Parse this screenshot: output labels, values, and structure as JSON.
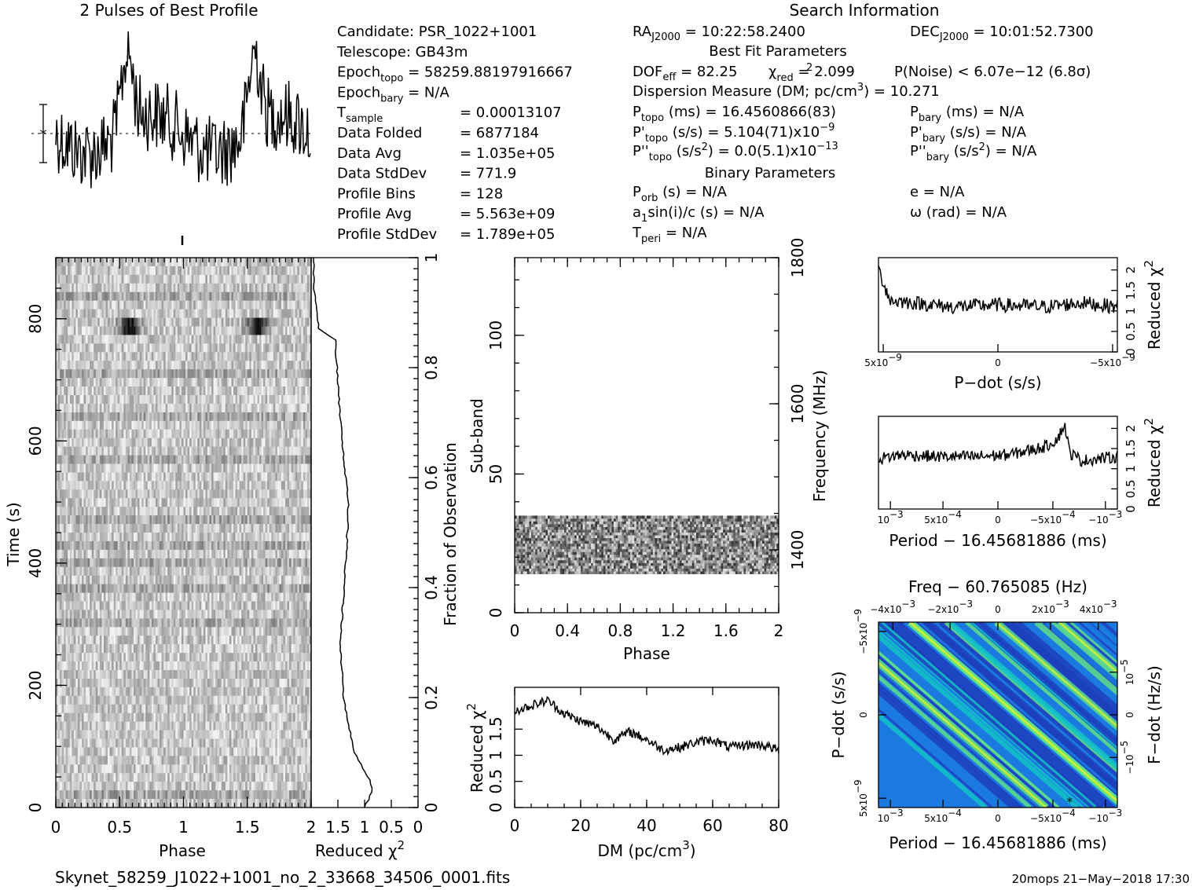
{
  "header": {
    "profile_title": "2 Pulses of Best Profile",
    "search_title": "Search Information",
    "best_fit_title": "Best Fit Parameters",
    "binary_title": "Binary Parameters"
  },
  "info_col1": [
    {
      "label": "Candidate:  PSR_1022+1001",
      "value": ""
    },
    {
      "label": "Telescope:  GB43m",
      "value": ""
    },
    {
      "label": "Epoch",
      "sub": "topo",
      "value": "= 58259.88197916667"
    },
    {
      "label": "Epoch",
      "sub": "bary",
      "value": "= N/A"
    },
    {
      "label": "T",
      "sub": "sample",
      "value": "=  0.00013107"
    },
    {
      "label": "Data Folded",
      "sub": "",
      "value": "=  6877184"
    },
    {
      "label": "Data Avg",
      "sub": "",
      "value": "=  1.035e+05"
    },
    {
      "label": "Data StdDev",
      "sub": "",
      "value": "=  771.9"
    },
    {
      "label": "Profile Bins",
      "sub": "",
      "value": "=  128"
    },
    {
      "label": "Profile Avg",
      "sub": "",
      "value": "=  5.563e+09"
    },
    {
      "label": "Profile StdDev",
      "sub": "",
      "value": "=  1.789e+05"
    }
  ],
  "info_col2": {
    "ra": "RA",
    "ra_sub": "J2000",
    "ra_value": " = 10:22:58.2400",
    "dec": "DEC",
    "dec_sub": "J2000",
    "dec_value": " = 10:01:52.7300",
    "dof": "DOF",
    "dof_sub": "eff",
    "dof_value": " = 82.25",
    "chi": "χ",
    "chi_sub": "red",
    "chi_value": " = 2.099",
    "pnoise": "P(Noise) < 6.07e−12   (6.8σ)",
    "dm": "Dispersion Measure (DM; pc/cm",
    "dm_value": ") = 10.271",
    "ptopo": "P",
    "ptopo_sub": "topo",
    "ptopo_value": " (ms) =  16.4560866(83)",
    "pbary": "P",
    "pbary_sub": "bary",
    "pbary_value": " (ms) = N/A",
    "pdtopo": "P'",
    "pdtopo_sub": "topo",
    "pdtopo_value": " (s/s) =  5.104(71)x10",
    "pdtopo_exp": "−9",
    "pdbary": "P'",
    "pdbary_sub": "bary",
    "pdbary_value": " (s/s) = N/A",
    "pddtopo": "P''",
    "pddtopo_sub": "topo",
    "pddtopo_value": " (s/s",
    "pddtopo_value2": ") = 0.0(5.1)x10",
    "pddtopo_exp": "−13",
    "pddbary": "P''",
    "pddbary_sub": "bary",
    "pddbary_value": " (s/s",
    "pddbary_value2": ") = N/A",
    "porb": "P",
    "porb_sub": "orb",
    "porb_value": " (s) = N/A",
    "ecc": "e = N/A",
    "a1": "a",
    "a1_sub": "1",
    "a1_value": "sin(i)/c (s) = N/A",
    "omega": "ω (rad) = N/A",
    "tperi": "T",
    "tperi_sub": "peri",
    "tperi_value": " = N/A"
  },
  "footer": {
    "filename": "Skynet_58259_J1022+1001_no_2_33668_34506_0001.fits",
    "stamp": "20mops 21−May−2018 17:30"
  },
  "chart_data": [
    {
      "type": "line",
      "name": "pulse-profile",
      "title": "2 Pulses of Best Profile",
      "x_range": [
        0,
        2
      ],
      "peaks_at_phase": [
        0.56,
        1.56
      ]
    },
    {
      "type": "heatmap",
      "name": "time-vs-phase",
      "xlabel": "Phase",
      "ylabel": "Time (s)",
      "xlim": [
        0,
        2
      ],
      "ylim": [
        0,
        900
      ],
      "x_ticks": [
        "0",
        "0.5",
        "1",
        "1.5"
      ],
      "y_ticks": [
        "0",
        "200",
        "400",
        "600",
        "800"
      ],
      "right_label": "Fraction of Observation",
      "right_ticks": [
        "0",
        "0.2",
        "0.4",
        "0.6",
        "0.8",
        "1"
      ],
      "bright_row_time": 782
    },
    {
      "type": "line",
      "name": "time-reduced-chi2",
      "xlabel": "Reduced χ",
      "x_ticks": [
        "2",
        "1.5",
        "1",
        "0.5",
        "0"
      ],
      "x_reversed": true,
      "fraction": [
        0,
        0.03,
        0.05,
        0.1,
        0.2,
        0.3,
        0.45,
        0.55,
        0.7,
        0.85,
        0.87,
        0.9,
        0.95,
        1.0
      ],
      "chi2": [
        1.0,
        0.85,
        0.9,
        1.2,
        1.4,
        1.45,
        1.35,
        1.3,
        1.45,
        1.55,
        1.85,
        1.9,
        1.95,
        1.95
      ]
    },
    {
      "type": "heatmap",
      "name": "subband-vs-phase",
      "xlabel": "Phase",
      "ylabel": "Sub-band",
      "xlim": [
        0,
        2
      ],
      "ylim": [
        0,
        128
      ],
      "x_ticks": [
        "0",
        "0.4",
        "0.8",
        "1.2",
        "1.6",
        "2"
      ],
      "y_ticks": [
        "0",
        "50",
        "100"
      ],
      "right_label": "Frequency (MHz)",
      "right_ticks": [
        "1400",
        "1600",
        "1800"
      ],
      "filled_subbands": [
        14,
        35
      ]
    },
    {
      "type": "line",
      "name": "dm-chi2",
      "xlabel": "DM (pc/cm",
      "ylabel": "Reduced χ",
      "x_ticks": [
        "0",
        "20",
        "40",
        "60",
        "80"
      ],
      "y_ticks": [
        "0",
        "0.5",
        "1",
        "1.5"
      ],
      "xlim": [
        0,
        80
      ],
      "ylim": [
        0,
        2.3
      ],
      "x": [
        0,
        5,
        10,
        15,
        20,
        25,
        27,
        30,
        35,
        40,
        45,
        50,
        55,
        60,
        65,
        70,
        75,
        80
      ],
      "y": [
        1.85,
        1.95,
        2.05,
        1.8,
        1.65,
        1.55,
        1.45,
        1.3,
        1.45,
        1.3,
        1.1,
        1.15,
        1.25,
        1.3,
        1.15,
        1.2,
        1.2,
        1.1
      ]
    },
    {
      "type": "line",
      "name": "pdot-chi2",
      "xlabel": "P−dot (s/s)",
      "ylabel": "Reduced χ",
      "x_ticks": [
        "5x10",
        "0",
        "−5x10"
      ],
      "x_tick_exp": "−9",
      "y_ticks": [
        "0",
        "0.5",
        "1",
        "1.5",
        "2"
      ],
      "ylim": [
        0,
        2.3
      ],
      "x": [
        0,
        0.05,
        0.15,
        0.3,
        0.5,
        0.7,
        0.85,
        1.0
      ],
      "y": [
        2.0,
        1.25,
        1.2,
        1.1,
        1.15,
        1.1,
        1.2,
        1.1
      ]
    },
    {
      "type": "line",
      "name": "period-chi2",
      "xlabel": "Period − 16.45681886 (ms)",
      "ylabel": "Reduced χ",
      "x_ticks": [
        "10",
        "5x10",
        "0",
        "−5x10",
        "−10"
      ],
      "x_tick_exp": [
        "−3",
        "−4",
        "",
        "−4",
        "−3"
      ],
      "y_ticks": [
        "0",
        "0.5",
        "1",
        "1.5",
        "2"
      ],
      "ylim": [
        0,
        2.3
      ],
      "x": [
        0,
        0.1,
        0.25,
        0.4,
        0.55,
        0.7,
        0.75,
        0.78,
        0.8,
        0.85,
        1.0
      ],
      "y": [
        1.25,
        1.35,
        1.3,
        1.3,
        1.35,
        1.55,
        1.75,
        2.1,
        1.4,
        1.2,
        1.3
      ]
    },
    {
      "type": "heatmap",
      "name": "ppdot-plane",
      "title": "Freq − 60.765085 (Hz)",
      "xlabel": "Period − 16.45681886 (ms)",
      "ylabel": "P−dot (s/s)",
      "right_label": "F−dot (Hz/s)",
      "bottom_ticks": [
        "10",
        "5x10",
        "0",
        "−5x10",
        "−10"
      ],
      "top_ticks": [
        "−4x10",
        "−2x10",
        "0",
        "2x10",
        "4x10"
      ],
      "top_tick_exp": "−3",
      "left_ticks": [
        "−5x10",
        "0",
        "5x10"
      ],
      "left_tick_exp": "−9",
      "right_ticks": [
        "10",
        "0",
        "−10"
      ],
      "right_tick_exp": "−5",
      "colors": [
        "#1e3fbf",
        "#1a7ae0",
        "#12c4c8",
        "#5fe08a",
        "#c6ef3a"
      ]
    }
  ]
}
